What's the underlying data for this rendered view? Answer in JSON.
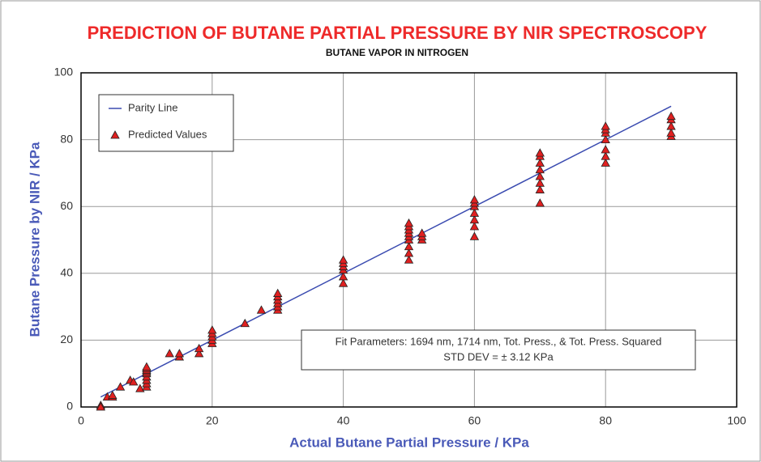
{
  "chart_data": {
    "type": "scatter",
    "title": "PREDICTION OF BUTANE PARTIAL PRESSURE BY NIR SPECTROSCOPY",
    "subtitle": "BUTANE VAPOR IN NITROGEN",
    "x_label": "Actual Butane Partial Pressure / KPa",
    "y_label": "Butane Pressure by NIR / KPa",
    "xlim": [
      0,
      100
    ],
    "ylim": [
      0,
      100
    ],
    "xticks": [
      0,
      20,
      40,
      60,
      80,
      100
    ],
    "yticks": [
      0,
      20,
      40,
      60,
      80,
      100
    ],
    "grid": true,
    "legend": "upper left",
    "annotation": [
      "Fit Parameters: 1694 nm, 1714 nm, Tot. Press., & Tot. Press. Squared",
      "STD DEV = ± 3.12 KPa"
    ],
    "series": [
      {
        "name": "Parity Line",
        "color": "#3a4bb0",
        "mode": "line",
        "x": [
          3,
          90
        ],
        "values": [
          3,
          90
        ]
      },
      {
        "name": "Predicted Values",
        "color": "#e02020",
        "mode": "marker",
        "x": [
          3,
          3,
          4,
          4.8,
          4.8,
          6,
          7.5,
          8,
          9,
          10,
          10,
          10,
          10,
          10,
          10,
          10,
          10,
          10,
          13.5,
          15,
          15,
          18,
          18,
          20,
          20,
          20,
          20,
          20,
          25,
          27.5,
          30,
          30,
          30,
          30,
          30,
          30,
          40,
          40,
          40,
          40,
          40,
          40,
          50,
          50,
          50,
          50,
          50,
          50,
          50,
          50,
          50,
          52,
          52,
          52,
          60,
          60,
          60,
          60,
          60,
          60,
          60,
          70,
          70,
          70,
          70,
          70,
          70,
          70,
          70,
          80,
          80,
          80,
          80,
          80,
          80,
          80,
          90,
          90,
          90,
          90,
          90
        ],
        "values": [
          0.5,
          0,
          3,
          3,
          3.5,
          6,
          8,
          7.5,
          5.5,
          6,
          7,
          8,
          9,
          10,
          10.5,
          11,
          11.5,
          12,
          16,
          15,
          16,
          16,
          17.5,
          19,
          20,
          21,
          22,
          23,
          25,
          29,
          29,
          30,
          31,
          32,
          33,
          34,
          37,
          39,
          41,
          42,
          43,
          44,
          44,
          46,
          48,
          50,
          51,
          52,
          53,
          54,
          55,
          50,
          51,
          52,
          51,
          54,
          56,
          58,
          60,
          61,
          62,
          61,
          65,
          67,
          69,
          71,
          73,
          75,
          76,
          73,
          75,
          77,
          80,
          82,
          83,
          84,
          81,
          82,
          84,
          86,
          87
        ]
      }
    ]
  }
}
